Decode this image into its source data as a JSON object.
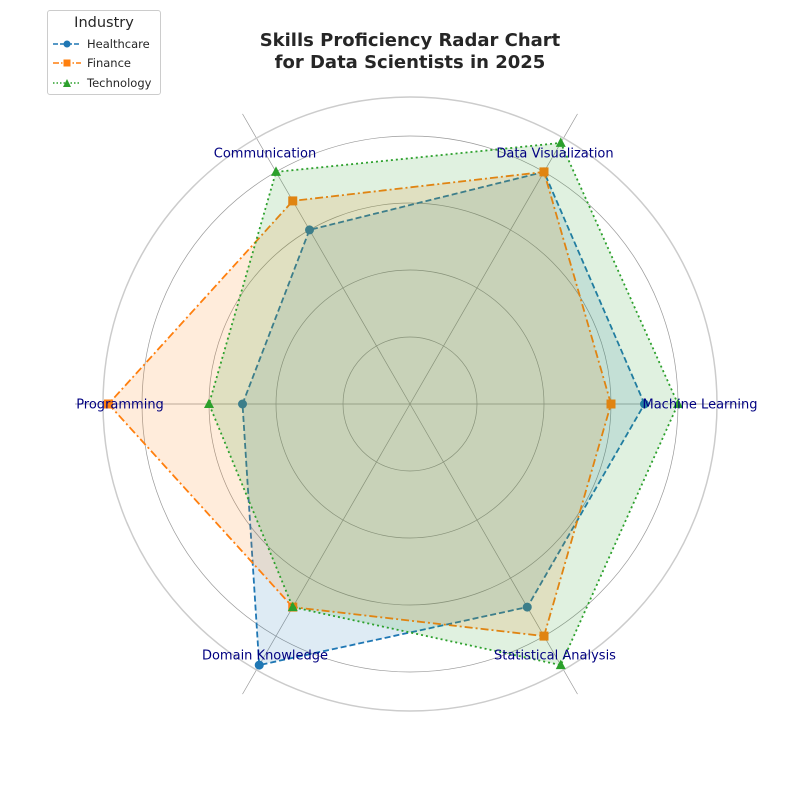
{
  "chart_data": {
    "type": "radar",
    "title_lines": [
      "Skills Proficiency Radar Chart",
      "for Data Scientists in 2025"
    ],
    "axes": [
      "Machine Learning",
      "Data Visualization",
      "Communication",
      "Programming",
      "Domain Knowledge",
      "Statistical Analysis"
    ],
    "rlim": [
      0,
      100
    ],
    "grid": true,
    "legend": {
      "title": "Industry",
      "placement": "upper-left"
    },
    "series": [
      {
        "name": "Healthcare",
        "values": [
          70,
          80,
          60,
          50,
          90,
          70
        ],
        "color": "#1f77b4",
        "marker": "circle",
        "linestyle": "dashed"
      },
      {
        "name": "Finance",
        "values": [
          60,
          80,
          70,
          90,
          70,
          80
        ],
        "color": "#ff7f0e",
        "marker": "square",
        "linestyle": "dashdot"
      },
      {
        "name": "Technology",
        "values": [
          80,
          90,
          80,
          60,
          70,
          90
        ],
        "color": "#2ca02c",
        "marker": "triangle",
        "linestyle": "dotted"
      }
    ]
  }
}
